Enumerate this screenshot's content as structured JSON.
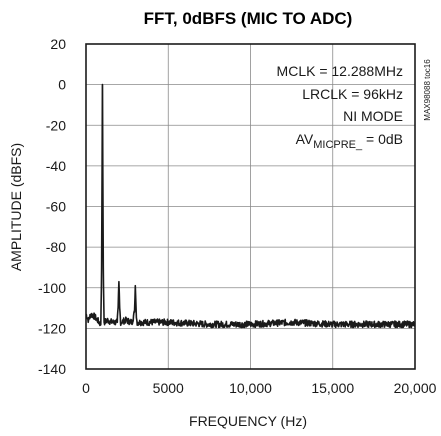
{
  "chart_data": {
    "type": "line",
    "title": "FFT, 0dBFS (MIC TO ADC)",
    "xlabel": "FREQUENCY (Hz)",
    "ylabel": "AMPLITUDE (dBFS)",
    "xlim": [
      0,
      20000
    ],
    "ylim": [
      -140,
      20
    ],
    "x_ticks": [
      0,
      5000,
      10000,
      15000,
      20000
    ],
    "x_tick_labels": [
      "0",
      "5000",
      "10,000",
      "15,000",
      "20,000"
    ],
    "y_ticks": [
      20,
      0,
      -20,
      -40,
      -60,
      -80,
      -100,
      -120,
      -140
    ],
    "y_tick_labels": [
      "20",
      "0",
      "-20",
      "-40",
      "-60",
      "-80",
      "-100",
      "-120",
      "-140"
    ],
    "grid": true,
    "annotations": {
      "mclk": "MCLK = 12.288MHz",
      "lrclk": "LRCLK = 96kHz",
      "mode": "NI MODE",
      "av_prefix": "AV",
      "av_subscript": "MICPRE_",
      "av_suffix": " = 0dB"
    },
    "figure_code": "MAX98088 toc16",
    "series": [
      {
        "color": "#1a1a1a",
        "noise_floor": -118,
        "x": [
          0,
          150,
          300,
          500,
          700,
          900,
          950,
          1000,
          1050,
          1100,
          1300,
          1600,
          1900,
          1950,
          2000,
          2050,
          2100,
          2400,
          2800,
          2950,
          3000,
          3050,
          3100,
          3500,
          5000,
          7500,
          10000,
          12500,
          15000,
          17500,
          20000
        ],
        "y": [
          -113,
          -116,
          -113,
          -114,
          -116,
          -118,
          -90,
          0,
          -90,
          -117,
          -116,
          -117,
          -117,
          -110,
          -97,
          -110,
          -117,
          -116,
          -117,
          -112,
          -99,
          -112,
          -117,
          -117,
          -117,
          -118,
          -118,
          -117,
          -118,
          -118,
          -118
        ]
      }
    ]
  }
}
